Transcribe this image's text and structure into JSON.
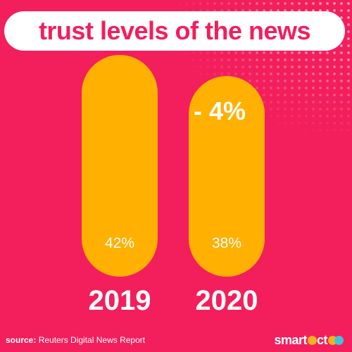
{
  "title": "trust levels of the news",
  "change_label": "- 4%",
  "source": {
    "label": "source:",
    "text": "Reuters Digital News Report"
  },
  "logo": {
    "text": "smart",
    "text2": "ct"
  },
  "colors": {
    "background": "#f31e5c",
    "bar": "#ffb000",
    "title_pill": "#ffffff",
    "title_text": "#f31e5c",
    "logo_accent_1": "#f7b21b",
    "logo_accent_2": "#3ec6d8"
  },
  "chart_data": {
    "type": "bar",
    "title": "trust levels of the news",
    "categories": [
      "2019",
      "2020"
    ],
    "values": [
      42,
      38
    ],
    "data_labels": [
      "42%",
      "38%"
    ],
    "unit": "%",
    "annotation": "- 4%"
  }
}
